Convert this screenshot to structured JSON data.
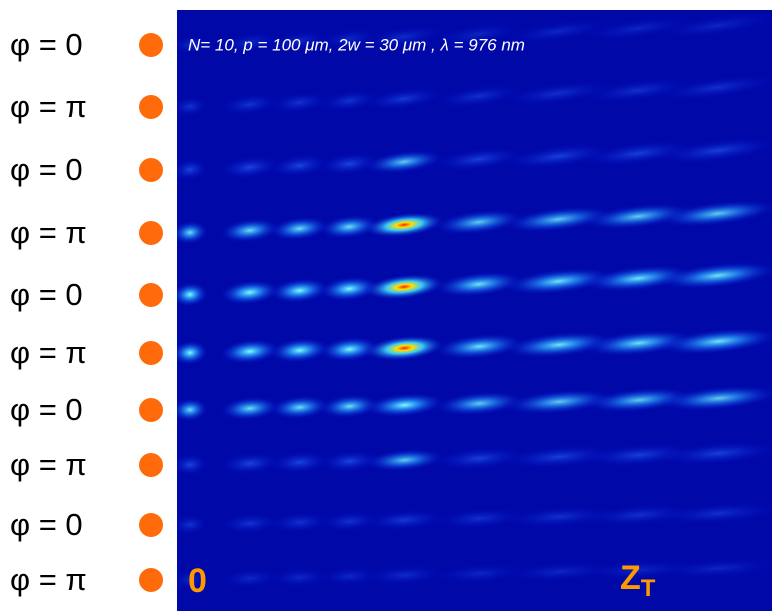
{
  "header": {
    "title": "N= 10, p = 100 μm, 2w = 30 μm , λ = 976 nm"
  },
  "phase_labels": [
    "φ = 0",
    "φ = π",
    "φ = 0",
    "φ = π",
    "φ = 0",
    "φ = π",
    "φ = 0",
    "φ = π",
    "φ = 0",
    "φ = π"
  ],
  "axis": {
    "start": "0",
    "end": {
      "main": "Z",
      "sub": "T"
    }
  }
}
